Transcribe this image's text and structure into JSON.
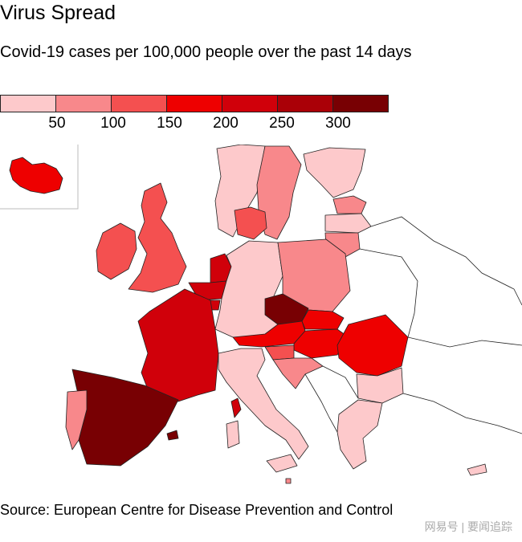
{
  "header": {
    "title": "Virus Spread",
    "subtitle": "Covid-19 cases per 100,000 people over the past 14 days"
  },
  "legend": {
    "colors": [
      "#fdc9cb",
      "#f8888b",
      "#f45050",
      "#ee0000",
      "#d0000a",
      "#aa0007",
      "#780003"
    ],
    "ticks": [
      "50",
      "100",
      "150",
      "200",
      "250",
      "300"
    ]
  },
  "regions": [
    {
      "name": "Iceland",
      "level": 3
    },
    {
      "name": "Ireland",
      "level": 2
    },
    {
      "name": "United Kingdom",
      "level": 2
    },
    {
      "name": "Norway",
      "level": 0
    },
    {
      "name": "Sweden",
      "level": 1
    },
    {
      "name": "Finland",
      "level": 0
    },
    {
      "name": "Estonia",
      "level": 1
    },
    {
      "name": "Latvia",
      "level": 0
    },
    {
      "name": "Lithuania",
      "level": 1
    },
    {
      "name": "Denmark",
      "level": 2
    },
    {
      "name": "Netherlands",
      "level": 4
    },
    {
      "name": "Belgium",
      "level": 4
    },
    {
      "name": "Luxembourg",
      "level": 4
    },
    {
      "name": "Germany",
      "level": 0
    },
    {
      "name": "Poland",
      "level": 1
    },
    {
      "name": "Czechia",
      "level": 6
    },
    {
      "name": "Slovakia",
      "level": 3
    },
    {
      "name": "Austria",
      "level": 3
    },
    {
      "name": "Hungary",
      "level": 3
    },
    {
      "name": "Slovenia",
      "level": 2
    },
    {
      "name": "Croatia",
      "level": 1
    },
    {
      "name": "Romania",
      "level": 3
    },
    {
      "name": "Bulgaria",
      "level": 0
    },
    {
      "name": "Greece",
      "level": 0
    },
    {
      "name": "France",
      "level": 4
    },
    {
      "name": "Spain",
      "level": 6
    },
    {
      "name": "Portugal",
      "level": 1
    },
    {
      "name": "Italy",
      "level": 0
    },
    {
      "name": "Corsica",
      "level": 4
    },
    {
      "name": "Sardinia",
      "level": 0
    },
    {
      "name": "Sicily",
      "level": 0
    },
    {
      "name": "Balearic Islands",
      "level": 6
    },
    {
      "name": "Malta",
      "level": 1
    },
    {
      "name": "Cyprus",
      "level": 0
    }
  ],
  "footer": {
    "source": "Source: European Centre for Disease Prevention and Control",
    "watermark": "网易号 | 要闻追踪"
  }
}
